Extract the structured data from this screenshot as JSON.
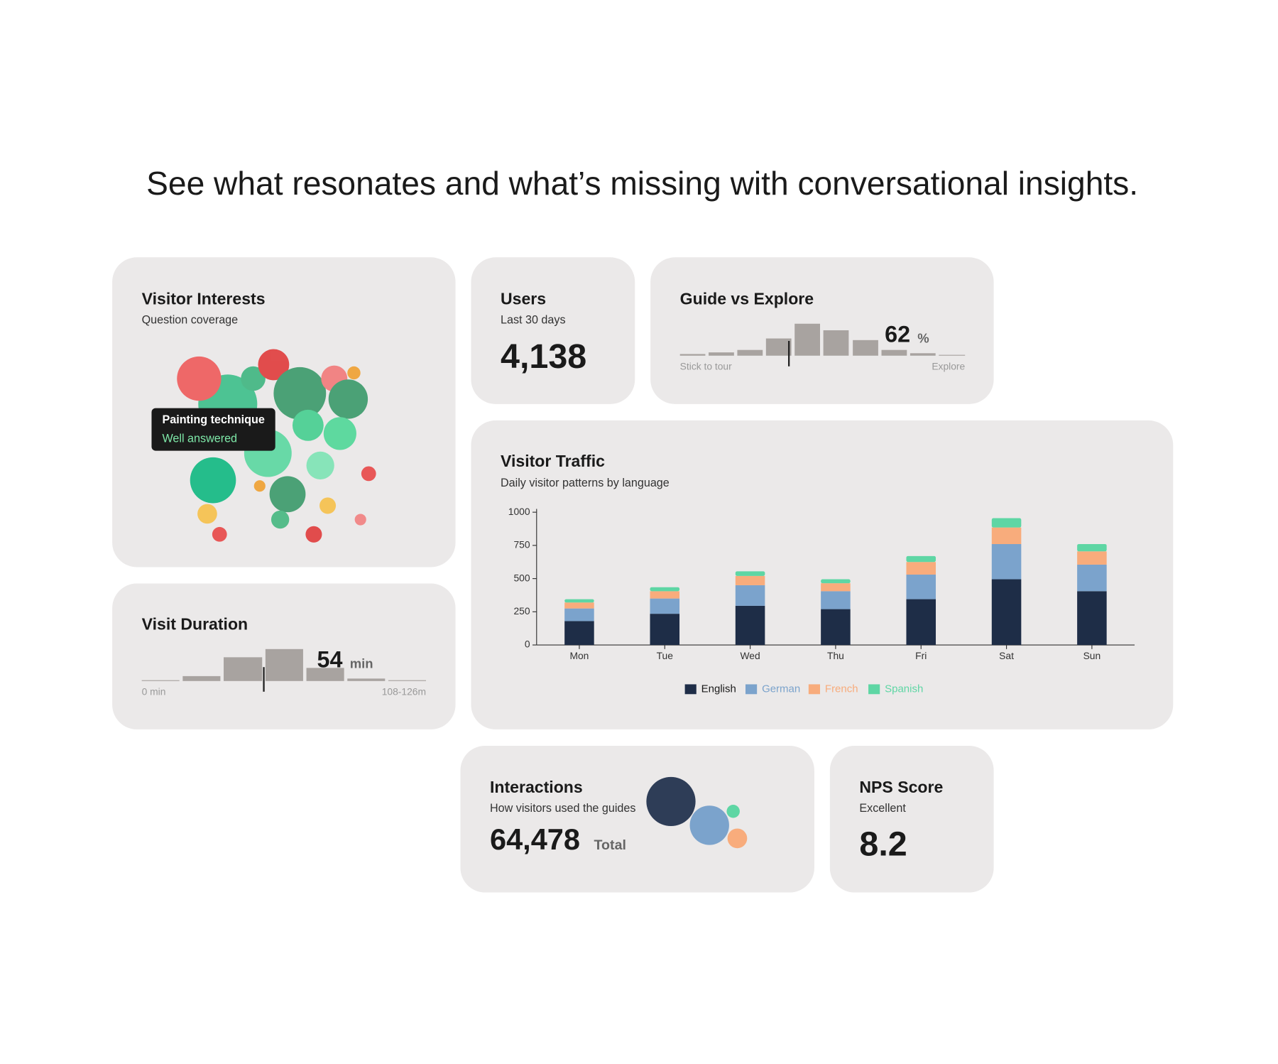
{
  "headline": "See what resonates and what’s missing with conversational insights.",
  "visitor_interests": {
    "title": "Visitor Interests",
    "subtitle": "Question coverage",
    "tooltip": {
      "title": "Painting technique",
      "status": "Well answered"
    }
  },
  "users": {
    "title": "Users",
    "subtitle": "Last 30 days",
    "value": "4,138"
  },
  "guide_vs_explore": {
    "title": "Guide vs Explore",
    "value": 62,
    "unit": "%",
    "left_label": "Stick to tour",
    "right_label": "Explore"
  },
  "visit_duration": {
    "title": "Visit Duration",
    "value": 54,
    "unit": "min",
    "left_label": "0 min",
    "right_label": "108-126m"
  },
  "visitor_traffic": {
    "type": "bar",
    "stacked": true,
    "title": "Visitor Traffic",
    "subtitle": "Daily visitor patterns by language",
    "categories": [
      "Mon",
      "Tue",
      "Wed",
      "Thu",
      "Fri",
      "Sat",
      "Sun"
    ],
    "series": [
      {
        "name": "English",
        "color": "#1e2d47",
        "values": [
          180,
          235,
          295,
          270,
          345,
          495,
          405
        ]
      },
      {
        "name": "German",
        "color": "#7ba3cc",
        "values": [
          95,
          115,
          155,
          135,
          185,
          265,
          200
        ]
      },
      {
        "name": "French",
        "color": "#f8ac7c",
        "values": [
          45,
          55,
          70,
          60,
          95,
          125,
          100
        ]
      },
      {
        "name": "Spanish",
        "color": "#5ed6a4",
        "values": [
          25,
          30,
          35,
          30,
          45,
          70,
          55
        ]
      }
    ],
    "ylim": [
      0,
      1000
    ],
    "yticks": [
      0,
      250,
      500,
      750,
      1000
    ]
  },
  "interactions": {
    "title": "Interactions",
    "subtitle": "How visitors used the guides",
    "value": "64,478",
    "unit": "Total"
  },
  "nps": {
    "title": "NPS Score",
    "subtitle": "Excellent",
    "value": 8.2
  }
}
